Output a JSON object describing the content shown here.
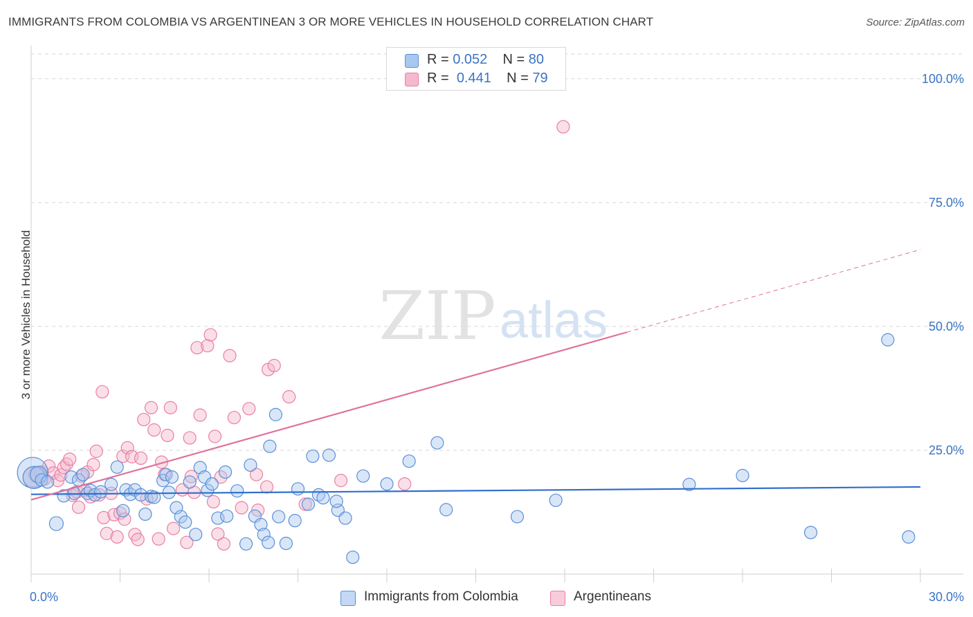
{
  "title": "IMMIGRANTS FROM COLOMBIA VS ARGENTINEAN 3 OR MORE VEHICLES IN HOUSEHOLD CORRELATION CHART",
  "source": "Source: ZipAtlas.com",
  "watermark": {
    "zip": "ZIP",
    "atlas": "atlas"
  },
  "legend_top": [
    {
      "r_label": "R =",
      "r_value": "0.052",
      "n_label": "N =",
      "n_value": "80"
    },
    {
      "r_label": "R =",
      "r_value": "0.441",
      "n_label": "N =",
      "n_value": "79"
    }
  ],
  "colors": {
    "blue_fill": "#a9c8ef",
    "blue_stroke": "#5b8fd6",
    "blue_line": "#2f6fcc",
    "pink_fill": "#f5b8cc",
    "pink_stroke": "#e87fa3",
    "pink_line": "#e0709a",
    "axis_text": "#3a74c4",
    "grid": "#d5d5d5"
  },
  "chart_data": {
    "type": "scatter",
    "title": "IMMIGRANTS FROM COLOMBIA VS ARGENTINEAN 3 OR MORE VEHICLES IN HOUSEHOLD CORRELATION CHART",
    "xlabel": "",
    "ylabel": "3 or more Vehicles in Household",
    "xlim": [
      0,
      30
    ],
    "ylim": [
      0,
      105
    ],
    "x_tick_labels": [
      "0.0%",
      "30.0%"
    ],
    "y_ticks": [
      25,
      50,
      75,
      100
    ],
    "y_tick_labels": [
      "25.0%",
      "50.0%",
      "75.0%",
      "100.0%"
    ],
    "grid": "horizontal dashed",
    "legend_position": "top-center and bottom",
    "series": [
      {
        "name": "Immigrants from Colombia",
        "color": "#a9c8ef",
        "trend": {
          "x": [
            0,
            30
          ],
          "y": [
            16.1,
            17.6
          ],
          "dashed_from": null
        },
        "points": [
          [
            0.05,
            20.5,
            22
          ],
          [
            0.1,
            19.5,
            16
          ],
          [
            0.25,
            20.1,
            12
          ],
          [
            0.35,
            19.0,
            9
          ],
          [
            0.55,
            18.6,
            9
          ],
          [
            0.85,
            10.2,
            10
          ],
          [
            1.1,
            15.8,
            9
          ],
          [
            1.35,
            19.6,
            9
          ],
          [
            1.45,
            16.3,
            9
          ],
          [
            1.6,
            19.0,
            9
          ],
          [
            1.75,
            20.1,
            9
          ],
          [
            1.9,
            16.3,
            9
          ],
          [
            2.0,
            16.9,
            9
          ],
          [
            2.15,
            16.0,
            9
          ],
          [
            2.35,
            16.6,
            9
          ],
          [
            2.7,
            18.1,
            9
          ],
          [
            2.9,
            21.6,
            9
          ],
          [
            3.1,
            12.8,
            9
          ],
          [
            3.2,
            17.0,
            9
          ],
          [
            3.35,
            16.1,
            9
          ],
          [
            3.5,
            17.0,
            9
          ],
          [
            3.7,
            16.0,
            9
          ],
          [
            3.85,
            12.1,
            9
          ],
          [
            4.05,
            15.7,
            9
          ],
          [
            4.15,
            15.5,
            9
          ],
          [
            4.45,
            18.9,
            9
          ],
          [
            4.55,
            20.1,
            9
          ],
          [
            4.65,
            16.5,
            9
          ],
          [
            4.75,
            19.6,
            9
          ],
          [
            4.9,
            13.4,
            9
          ],
          [
            5.05,
            11.6,
            9
          ],
          [
            5.2,
            10.5,
            9
          ],
          [
            5.35,
            18.6,
            9
          ],
          [
            5.55,
            8.0,
            9
          ],
          [
            5.7,
            21.5,
            9
          ],
          [
            5.85,
            19.6,
            9
          ],
          [
            5.95,
            16.9,
            9
          ],
          [
            6.1,
            18.2,
            9
          ],
          [
            6.3,
            11.3,
            9
          ],
          [
            6.55,
            20.6,
            9
          ],
          [
            6.6,
            11.7,
            9
          ],
          [
            6.95,
            16.8,
            9
          ],
          [
            7.25,
            6.1,
            9
          ],
          [
            7.4,
            22.0,
            9
          ],
          [
            7.55,
            11.7,
            9
          ],
          [
            7.75,
            10.0,
            9
          ],
          [
            7.85,
            8.0,
            9
          ],
          [
            8.0,
            6.4,
            9
          ],
          [
            8.25,
            32.2,
            9
          ],
          [
            8.35,
            11.6,
            9
          ],
          [
            8.05,
            25.8,
            9
          ],
          [
            8.6,
            6.2,
            9
          ],
          [
            8.9,
            10.8,
            9
          ],
          [
            9.0,
            17.2,
            9
          ],
          [
            9.35,
            14.1,
            9
          ],
          [
            9.5,
            23.8,
            9
          ],
          [
            9.7,
            16.0,
            9
          ],
          [
            9.85,
            15.4,
            9
          ],
          [
            10.05,
            24.0,
            9
          ],
          [
            10.35,
            12.9,
            9
          ],
          [
            10.3,
            14.7,
            9
          ],
          [
            10.6,
            11.3,
            9
          ],
          [
            10.85,
            3.4,
            9
          ],
          [
            11.2,
            19.8,
            9
          ],
          [
            12.0,
            18.2,
            9
          ],
          [
            12.75,
            22.8,
            9
          ],
          [
            13.7,
            26.5,
            9
          ],
          [
            14.0,
            13.0,
            9
          ],
          [
            16.4,
            11.6,
            9
          ],
          [
            17.7,
            14.9,
            9
          ],
          [
            22.2,
            18.1,
            9
          ],
          [
            24.0,
            19.9,
            9
          ],
          [
            26.3,
            8.4,
            9
          ],
          [
            28.9,
            47.3,
            9
          ],
          [
            29.6,
            7.5,
            9
          ]
        ]
      },
      {
        "name": "Argentineans",
        "color": "#f5b8cc",
        "trend": {
          "x": [
            0,
            30
          ],
          "y": [
            15.0,
            65.5
          ],
          "dashed_from": 20.1
        },
        "points": [
          [
            0.05,
            19.6,
            14
          ],
          [
            0.2,
            20.1,
            12
          ],
          [
            0.35,
            20.5,
            10
          ],
          [
            0.45,
            19.2,
            9
          ],
          [
            0.6,
            21.8,
            9
          ],
          [
            0.75,
            20.4,
            9
          ],
          [
            0.9,
            18.9,
            9
          ],
          [
            1.0,
            20.0,
            9
          ],
          [
            1.1,
            21.5,
            9
          ],
          [
            1.2,
            22.2,
            9
          ],
          [
            1.3,
            23.2,
            9
          ],
          [
            1.4,
            15.9,
            9
          ],
          [
            1.55,
            16.6,
            9
          ],
          [
            1.6,
            13.5,
            9
          ],
          [
            1.7,
            19.8,
            9
          ],
          [
            1.8,
            16.9,
            9
          ],
          [
            1.9,
            20.6,
            9
          ],
          [
            2.0,
            15.6,
            9
          ],
          [
            2.1,
            22.1,
            9
          ],
          [
            2.2,
            24.8,
            9
          ],
          [
            2.3,
            16.0,
            9
          ],
          [
            2.45,
            11.4,
            9
          ],
          [
            2.4,
            36.8,
            9
          ],
          [
            2.55,
            8.2,
            9
          ],
          [
            2.7,
            16.3,
            9
          ],
          [
            2.8,
            12.0,
            9
          ],
          [
            2.9,
            7.5,
            9
          ],
          [
            3.0,
            12.3,
            9
          ],
          [
            3.1,
            23.8,
            9
          ],
          [
            3.15,
            11.1,
            9
          ],
          [
            3.25,
            25.5,
            9
          ],
          [
            3.4,
            23.7,
            9
          ],
          [
            3.5,
            8.0,
            9
          ],
          [
            3.6,
            7.0,
            9
          ],
          [
            3.7,
            23.4,
            9
          ],
          [
            3.8,
            31.2,
            9
          ],
          [
            3.9,
            15.2,
            9
          ],
          [
            4.05,
            33.6,
            9
          ],
          [
            4.15,
            29.1,
            9
          ],
          [
            4.3,
            7.1,
            9
          ],
          [
            4.4,
            22.6,
            9
          ],
          [
            4.5,
            20.1,
            9
          ],
          [
            4.6,
            28.0,
            9
          ],
          [
            4.7,
            33.6,
            9
          ],
          [
            4.8,
            9.2,
            9
          ],
          [
            5.1,
            17.0,
            9
          ],
          [
            5.25,
            6.4,
            9
          ],
          [
            5.35,
            27.5,
            9
          ],
          [
            5.4,
            19.7,
            9
          ],
          [
            5.5,
            16.5,
            9
          ],
          [
            5.6,
            45.7,
            9
          ],
          [
            5.7,
            32.1,
            9
          ],
          [
            5.95,
            46.1,
            9
          ],
          [
            6.05,
            48.3,
            9
          ],
          [
            6.15,
            14.6,
            9
          ],
          [
            6.2,
            27.8,
            9
          ],
          [
            6.3,
            8.1,
            9
          ],
          [
            6.4,
            19.6,
            9
          ],
          [
            6.5,
            6.1,
            9
          ],
          [
            6.7,
            44.1,
            9
          ],
          [
            6.85,
            31.6,
            9
          ],
          [
            7.1,
            13.4,
            9
          ],
          [
            7.35,
            33.4,
            9
          ],
          [
            7.6,
            20.1,
            9
          ],
          [
            7.65,
            12.9,
            9
          ],
          [
            7.95,
            17.6,
            9
          ],
          [
            8.0,
            41.3,
            9
          ],
          [
            8.2,
            42.1,
            9
          ],
          [
            8.7,
            35.8,
            9
          ],
          [
            9.25,
            14.1,
            9
          ],
          [
            10.45,
            18.9,
            9
          ],
          [
            12.6,
            18.2,
            9
          ],
          [
            17.95,
            90.3,
            9
          ]
        ]
      }
    ]
  },
  "legend_bottom": [
    {
      "label": "Immigrants from Colombia"
    },
    {
      "label": "Argentineans"
    }
  ]
}
